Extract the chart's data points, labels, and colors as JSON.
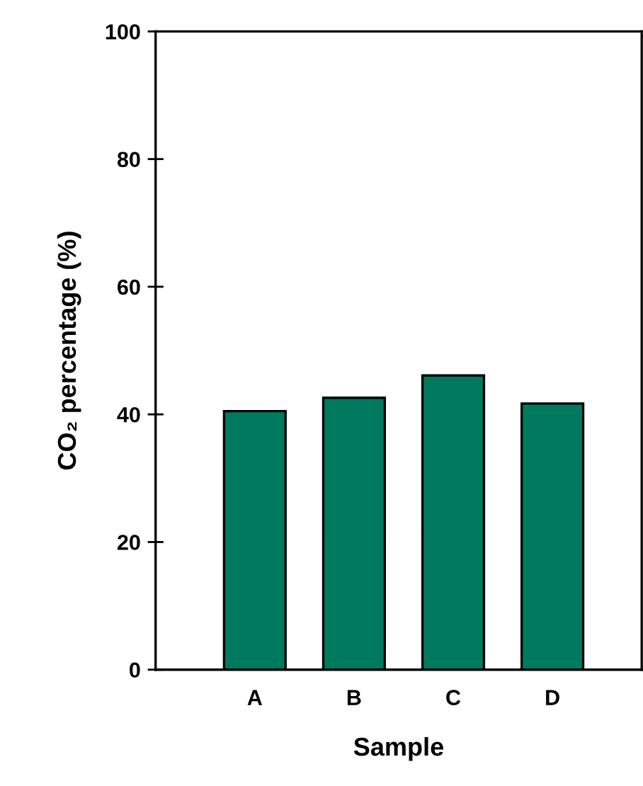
{
  "chart_data": {
    "type": "bar",
    "xlabel": "Sample",
    "ylabel": "CO₂ percentage (%)",
    "categories": [
      "A",
      "B",
      "C",
      "D"
    ],
    "values": [
      40.5,
      42.6,
      46.1,
      41.7
    ],
    "color": "#007a5e",
    "ylim": [
      0,
      100
    ],
    "yticks": [
      0,
      20,
      40,
      60,
      80,
      100
    ],
    "grid": false,
    "legend": false
  }
}
